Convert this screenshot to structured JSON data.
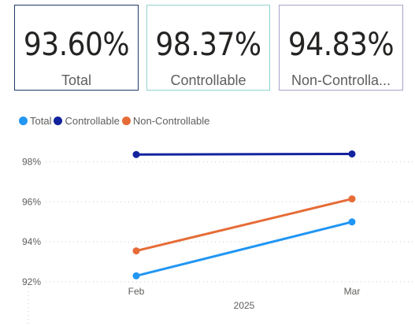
{
  "cards": [
    {
      "value": "93.60%",
      "label": "Total",
      "border": "#1f3a68"
    },
    {
      "value": "98.37%",
      "label": "Controllable",
      "border": "#8fd3cf"
    },
    {
      "value": "94.83%",
      "label": "Non-Controlla...",
      "border": "#a7a2cc"
    }
  ],
  "legend": [
    {
      "name": "Total",
      "color": "#2196f3"
    },
    {
      "name": "Controllable",
      "color": "#12239e"
    },
    {
      "name": "Non-Controllable",
      "color": "#e66c37"
    }
  ],
  "chart_data": {
    "type": "line",
    "x": [
      "Feb",
      "Mar"
    ],
    "xlabel": "2025",
    "ylabel": "",
    "yticks": [
      "92%",
      "94%",
      "96%",
      "98%"
    ],
    "ylim": [
      91.8,
      99.6
    ],
    "grid": true,
    "legend_position": "top-left",
    "series": [
      {
        "name": "Total",
        "color": "#2196f3",
        "values": [
          92.3,
          95.0
        ]
      },
      {
        "name": "Controllable",
        "color": "#12239e",
        "values": [
          98.37,
          98.4
        ]
      },
      {
        "name": "Non-Controllable",
        "color": "#e66c37",
        "values": [
          93.55,
          96.15
        ]
      }
    ]
  }
}
